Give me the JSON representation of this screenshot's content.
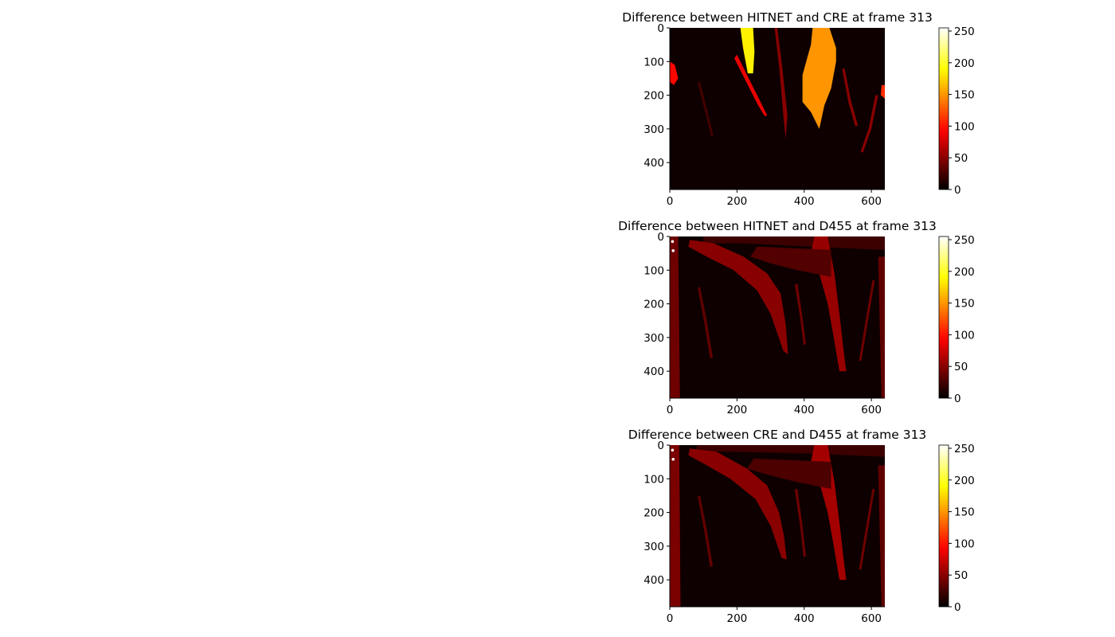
{
  "chart_data": [
    {
      "type": "heatmap",
      "title": "Difference between HITNET and CRE at frame 313",
      "colormap": "hot",
      "xlim": [
        0,
        640
      ],
      "ylim": [
        480,
        0
      ],
      "xticks": [
        0,
        200,
        400,
        600
      ],
      "yticks": [
        0,
        100,
        200,
        300,
        400
      ],
      "colorbar": {
        "range": [
          0,
          255
        ],
        "ticks": [
          0,
          50,
          100,
          150,
          200,
          250
        ]
      },
      "regions": [
        {
          "desc": "wide bright band",
          "points": [
            [
              425,
              0
            ],
            [
              475,
              0
            ],
            [
              495,
              60
            ],
            [
              495,
              100
            ],
            [
              480,
              180
            ],
            [
              460,
              230
            ],
            [
              445,
              300
            ],
            [
              420,
              250
            ],
            [
              395,
              220
            ],
            [
              395,
              140
            ],
            [
              420,
              50
            ]
          ],
          "value": 150
        },
        {
          "desc": "narrow strip",
          "points": [
            [
              210,
              0
            ],
            [
              248,
              0
            ],
            [
              252,
              70
            ],
            [
              248,
              135
            ],
            [
              232,
              135
            ],
            [
              218,
              60
            ]
          ],
          "value": 185
        },
        {
          "desc": "left edge blob",
          "points": [
            [
              0,
              100
            ],
            [
              15,
              110
            ],
            [
              25,
              150
            ],
            [
              12,
              170
            ],
            [
              0,
              160
            ]
          ],
          "value": 95
        },
        {
          "desc": "right edge strip",
          "points": [
            [
              630,
              170
            ],
            [
              640,
              170
            ],
            [
              640,
              210
            ],
            [
              628,
              200
            ]
          ],
          "value": 110
        },
        {
          "desc": "diagonal line",
          "points": [
            [
              200,
              80
            ],
            [
              230,
              140
            ],
            [
              270,
              220
            ],
            [
              290,
              260
            ],
            [
              282,
              262
            ],
            [
              262,
              228
            ],
            [
              222,
              150
            ],
            [
              192,
              90
            ]
          ],
          "value": 85
        },
        {
          "desc": "crack",
          "points": [
            [
              320,
              0
            ],
            [
              335,
              120
            ],
            [
              350,
              260
            ],
            [
              345,
              330
            ],
            [
              338,
              260
            ],
            [
              326,
              120
            ],
            [
              312,
              0
            ]
          ],
          "value": 50
        },
        {
          "desc": "crack",
          "points": [
            [
              520,
              120
            ],
            [
              540,
              220
            ],
            [
              560,
              290
            ],
            [
              552,
              292
            ],
            [
              532,
              222
            ],
            [
              513,
              122
            ]
          ],
          "value": 50
        },
        {
          "desc": "crack",
          "points": [
            [
              620,
              200
            ],
            [
              600,
              300
            ],
            [
              575,
              370
            ],
            [
              568,
              368
            ],
            [
              592,
              298
            ],
            [
              612,
              200
            ]
          ],
          "value": 50
        },
        {
          "desc": "crack",
          "points": [
            [
              90,
              160
            ],
            [
              110,
              240
            ],
            [
              130,
              320
            ],
            [
              123,
              322
            ],
            [
              103,
              242
            ],
            [
              83,
              162
            ]
          ],
          "value": 25
        }
      ]
    },
    {
      "type": "heatmap",
      "title": "Difference between HITNET and D455 at frame 313",
      "colormap": "hot",
      "xlim": [
        0,
        640
      ],
      "ylim": [
        480,
        0
      ],
      "xticks": [
        0,
        200,
        400,
        600
      ],
      "yticks": [
        0,
        100,
        200,
        300,
        400
      ],
      "colorbar": {
        "range": [
          0,
          255
        ],
        "ticks": [
          0,
          50,
          100,
          150,
          200,
          250
        ]
      },
      "regions": [
        {
          "desc": "top band",
          "points": [
            [
              100,
              0
            ],
            [
              640,
              0
            ],
            [
              640,
              40
            ],
            [
              420,
              30
            ],
            [
              210,
              20
            ],
            [
              100,
              20
            ]
          ],
          "value": 22
        },
        {
          "desc": "left strip",
          "points": [
            [
              0,
              0
            ],
            [
              25,
              0
            ],
            [
              30,
              480
            ],
            [
              0,
              480
            ]
          ],
          "value": 40
        },
        {
          "desc": "diagonal band",
          "points": [
            [
              60,
              10
            ],
            [
              130,
              20
            ],
            [
              220,
              60
            ],
            [
              290,
              110
            ],
            [
              330,
              170
            ],
            [
              345,
              260
            ],
            [
              352,
              350
            ],
            [
              338,
              340
            ],
            [
              300,
              230
            ],
            [
              260,
              160
            ],
            [
              190,
              100
            ],
            [
              110,
              60
            ],
            [
              55,
              30
            ]
          ],
          "value": 50
        },
        {
          "desc": "vertical band",
          "points": [
            [
              430,
              0
            ],
            [
              470,
              0
            ],
            [
              490,
              110
            ],
            [
              505,
              230
            ],
            [
              515,
              320
            ],
            [
              525,
              400
            ],
            [
              505,
              400
            ],
            [
              488,
              300
            ],
            [
              470,
              200
            ],
            [
              445,
              110
            ],
            [
              420,
              50
            ]
          ],
          "value": 55
        },
        {
          "desc": "mid region",
          "points": [
            [
              260,
              30
            ],
            [
              480,
              40
            ],
            [
              480,
              120
            ],
            [
              380,
              100
            ],
            [
              300,
              80
            ],
            [
              240,
              60
            ]
          ],
          "value": 30
        },
        {
          "desc": "right strip",
          "points": [
            [
              620,
              60
            ],
            [
              640,
              60
            ],
            [
              640,
              480
            ],
            [
              630,
              480
            ]
          ],
          "value": 35
        },
        {
          "desc": "crack",
          "points": [
            [
              90,
              150
            ],
            [
              110,
              250
            ],
            [
              128,
              360
            ],
            [
              120,
              362
            ],
            [
              102,
              252
            ],
            [
              83,
              152
            ]
          ],
          "value": 35
        },
        {
          "desc": "crack",
          "points": [
            [
              380,
              140
            ],
            [
              395,
              240
            ],
            [
              405,
              320
            ],
            [
              398,
              322
            ],
            [
              388,
              242
            ],
            [
              372,
              142
            ]
          ],
          "value": 40
        },
        {
          "desc": "crack",
          "points": [
            [
              610,
              130
            ],
            [
              590,
              250
            ],
            [
              570,
              370
            ],
            [
              563,
              368
            ],
            [
              583,
              248
            ],
            [
              603,
              130
            ]
          ],
          "value": 40
        }
      ],
      "white_spots": [
        [
          8,
          15
        ],
        [
          10,
          42
        ]
      ]
    },
    {
      "type": "heatmap",
      "title": "Difference between CRE and D455 at frame 313",
      "colormap": "hot",
      "xlim": [
        0,
        640
      ],
      "ylim": [
        480,
        0
      ],
      "xticks": [
        0,
        200,
        400,
        600
      ],
      "yticks": [
        0,
        100,
        200,
        300,
        400
      ],
      "colorbar": {
        "range": [
          0,
          255
        ],
        "ticks": [
          0,
          50,
          100,
          150,
          200,
          250
        ]
      },
      "regions": [
        {
          "desc": "top band",
          "points": [
            [
              80,
              0
            ],
            [
              640,
              0
            ],
            [
              640,
              35
            ],
            [
              420,
              25
            ],
            [
              200,
              20
            ],
            [
              80,
              18
            ]
          ],
          "value": 22
        },
        {
          "desc": "left strip",
          "points": [
            [
              0,
              0
            ],
            [
              28,
              0
            ],
            [
              32,
              480
            ],
            [
              0,
              480
            ]
          ],
          "value": 45
        },
        {
          "desc": "diagonal band",
          "points": [
            [
              60,
              10
            ],
            [
              140,
              20
            ],
            [
              230,
              70
            ],
            [
              290,
              120
            ],
            [
              325,
              200
            ],
            [
              340,
              270
            ],
            [
              348,
              340
            ],
            [
              333,
              335
            ],
            [
              300,
              240
            ],
            [
              255,
              160
            ],
            [
              180,
              100
            ],
            [
              110,
              60
            ],
            [
              55,
              30
            ]
          ],
          "value": 50
        },
        {
          "desc": "vertical band",
          "points": [
            [
              430,
              0
            ],
            [
              470,
              0
            ],
            [
              490,
              110
            ],
            [
              505,
              230
            ],
            [
              515,
              320
            ],
            [
              525,
              400
            ],
            [
              505,
              400
            ],
            [
              488,
              300
            ],
            [
              470,
              200
            ],
            [
              445,
              110
            ],
            [
              420,
              50
            ]
          ],
          "value": 60
        },
        {
          "desc": "mid region",
          "points": [
            [
              250,
              40
            ],
            [
              480,
              50
            ],
            [
              480,
              130
            ],
            [
              380,
              110
            ],
            [
              300,
              90
            ],
            [
              230,
              70
            ]
          ],
          "value": 28
        },
        {
          "desc": "right strip",
          "points": [
            [
              620,
              60
            ],
            [
              640,
              60
            ],
            [
              640,
              480
            ],
            [
              630,
              480
            ]
          ],
          "value": 35
        },
        {
          "desc": "crack",
          "points": [
            [
              90,
              150
            ],
            [
              110,
              250
            ],
            [
              128,
              360
            ],
            [
              120,
              362
            ],
            [
              102,
              252
            ],
            [
              83,
              152
            ]
          ],
          "value": 35
        },
        {
          "desc": "crack",
          "points": [
            [
              380,
              130
            ],
            [
              395,
              240
            ],
            [
              405,
              330
            ],
            [
              398,
              332
            ],
            [
              388,
              242
            ],
            [
              372,
              132
            ]
          ],
          "value": 40
        },
        {
          "desc": "crack",
          "points": [
            [
              610,
              130
            ],
            [
              590,
              250
            ],
            [
              570,
              370
            ],
            [
              563,
              368
            ],
            [
              583,
              248
            ],
            [
              603,
              130
            ]
          ],
          "value": 40
        }
      ],
      "white_spots": [
        [
          8,
          15
        ],
        [
          10,
          42
        ]
      ]
    }
  ]
}
